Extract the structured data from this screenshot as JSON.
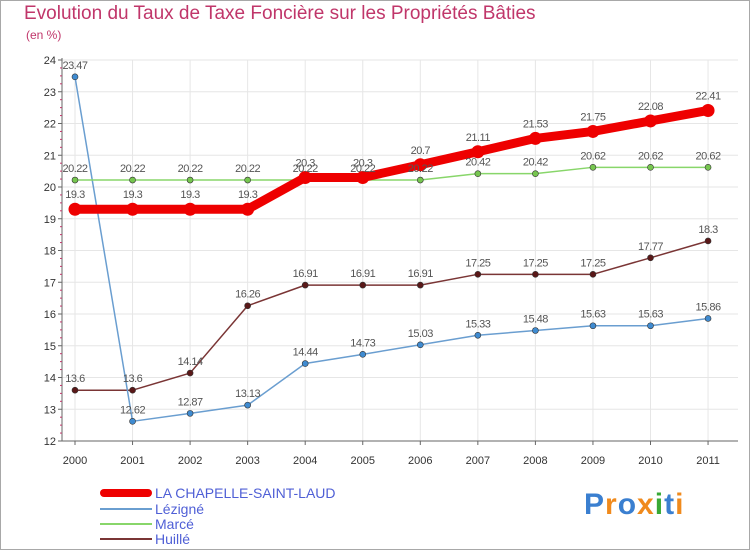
{
  "title": "Evolution du Taux de Taxe Foncière sur les Propriétés Bâties",
  "unit_label": "(en %)",
  "brand": {
    "name": "Proxiti"
  },
  "colors": {
    "title": "#c0366a",
    "legend_text": "#4f5fd6",
    "axis": "#666666",
    "grid": "#e6e6e6",
    "label": "#555555"
  },
  "chart_data": {
    "type": "line",
    "title": "Evolution du Taux de Taxe Foncière sur les Propriétés Bâties",
    "ylabel": "(en %)",
    "xlabel": "",
    "x": [
      "2000",
      "2001",
      "2002",
      "2003",
      "2004",
      "2005",
      "2006",
      "2007",
      "2008",
      "2009",
      "2010",
      "2011"
    ],
    "ylim": [
      12,
      24
    ],
    "yticks": [
      "12",
      "13",
      "14",
      "15",
      "16",
      "17",
      "18",
      "19",
      "20",
      "21",
      "22",
      "23",
      "24"
    ],
    "grid": true,
    "legend_position": "bottom-left",
    "series": [
      {
        "name": "LA CHAPELLE-SAINT-LAUD",
        "color": "#ee0000",
        "marker": "#ee0000",
        "emphasis": true,
        "values": [
          19.3,
          19.3,
          19.3,
          19.3,
          20.3,
          20.3,
          20.7,
          21.11,
          21.53,
          21.75,
          22.08,
          22.41
        ],
        "labels": [
          "19.3",
          "19.3",
          "19.3",
          "19.3",
          "20.3",
          "20.3",
          "20.7",
          "21.11",
          "21.53",
          "21.75",
          "22.08",
          "22.41"
        ]
      },
      {
        "name": "Lézigné",
        "color": "#6a9ed0",
        "marker": "#3f8bd1",
        "emphasis": false,
        "values": [
          23.47,
          12.62,
          12.87,
          13.13,
          14.44,
          14.73,
          15.03,
          15.33,
          15.48,
          15.63,
          15.63,
          15.86
        ],
        "labels": [
          "23.47",
          "12.62",
          "12.87",
          "13.13",
          "14.44",
          "14.73",
          "15.03",
          "15.33",
          "15.48",
          "15.63",
          "15.63",
          "15.86"
        ]
      },
      {
        "name": "Marcé",
        "color": "#88d66a",
        "marker": "#76c64f",
        "emphasis": false,
        "values": [
          20.22,
          20.22,
          20.22,
          20.22,
          20.22,
          20.22,
          20.22,
          20.42,
          20.42,
          20.62,
          20.62,
          20.62
        ],
        "labels": [
          "20.22",
          "20.22",
          "20.22",
          "20.22",
          "20.22",
          "20.22",
          "20.22",
          "20.42",
          "20.42",
          "20.62",
          "20.62",
          "20.62"
        ]
      },
      {
        "name": "Huillé",
        "color": "#7a3535",
        "marker": "#5a1818",
        "emphasis": false,
        "values": [
          13.6,
          13.6,
          14.14,
          16.26,
          16.91,
          16.91,
          16.91,
          17.25,
          17.25,
          17.25,
          17.77,
          18.3
        ],
        "labels": [
          "13.6",
          "13.6",
          "14.14",
          "16.26",
          "16.91",
          "16.91",
          "16.91",
          "17.25",
          "17.25",
          "17.25",
          "17.77",
          "18.3"
        ]
      }
    ]
  }
}
